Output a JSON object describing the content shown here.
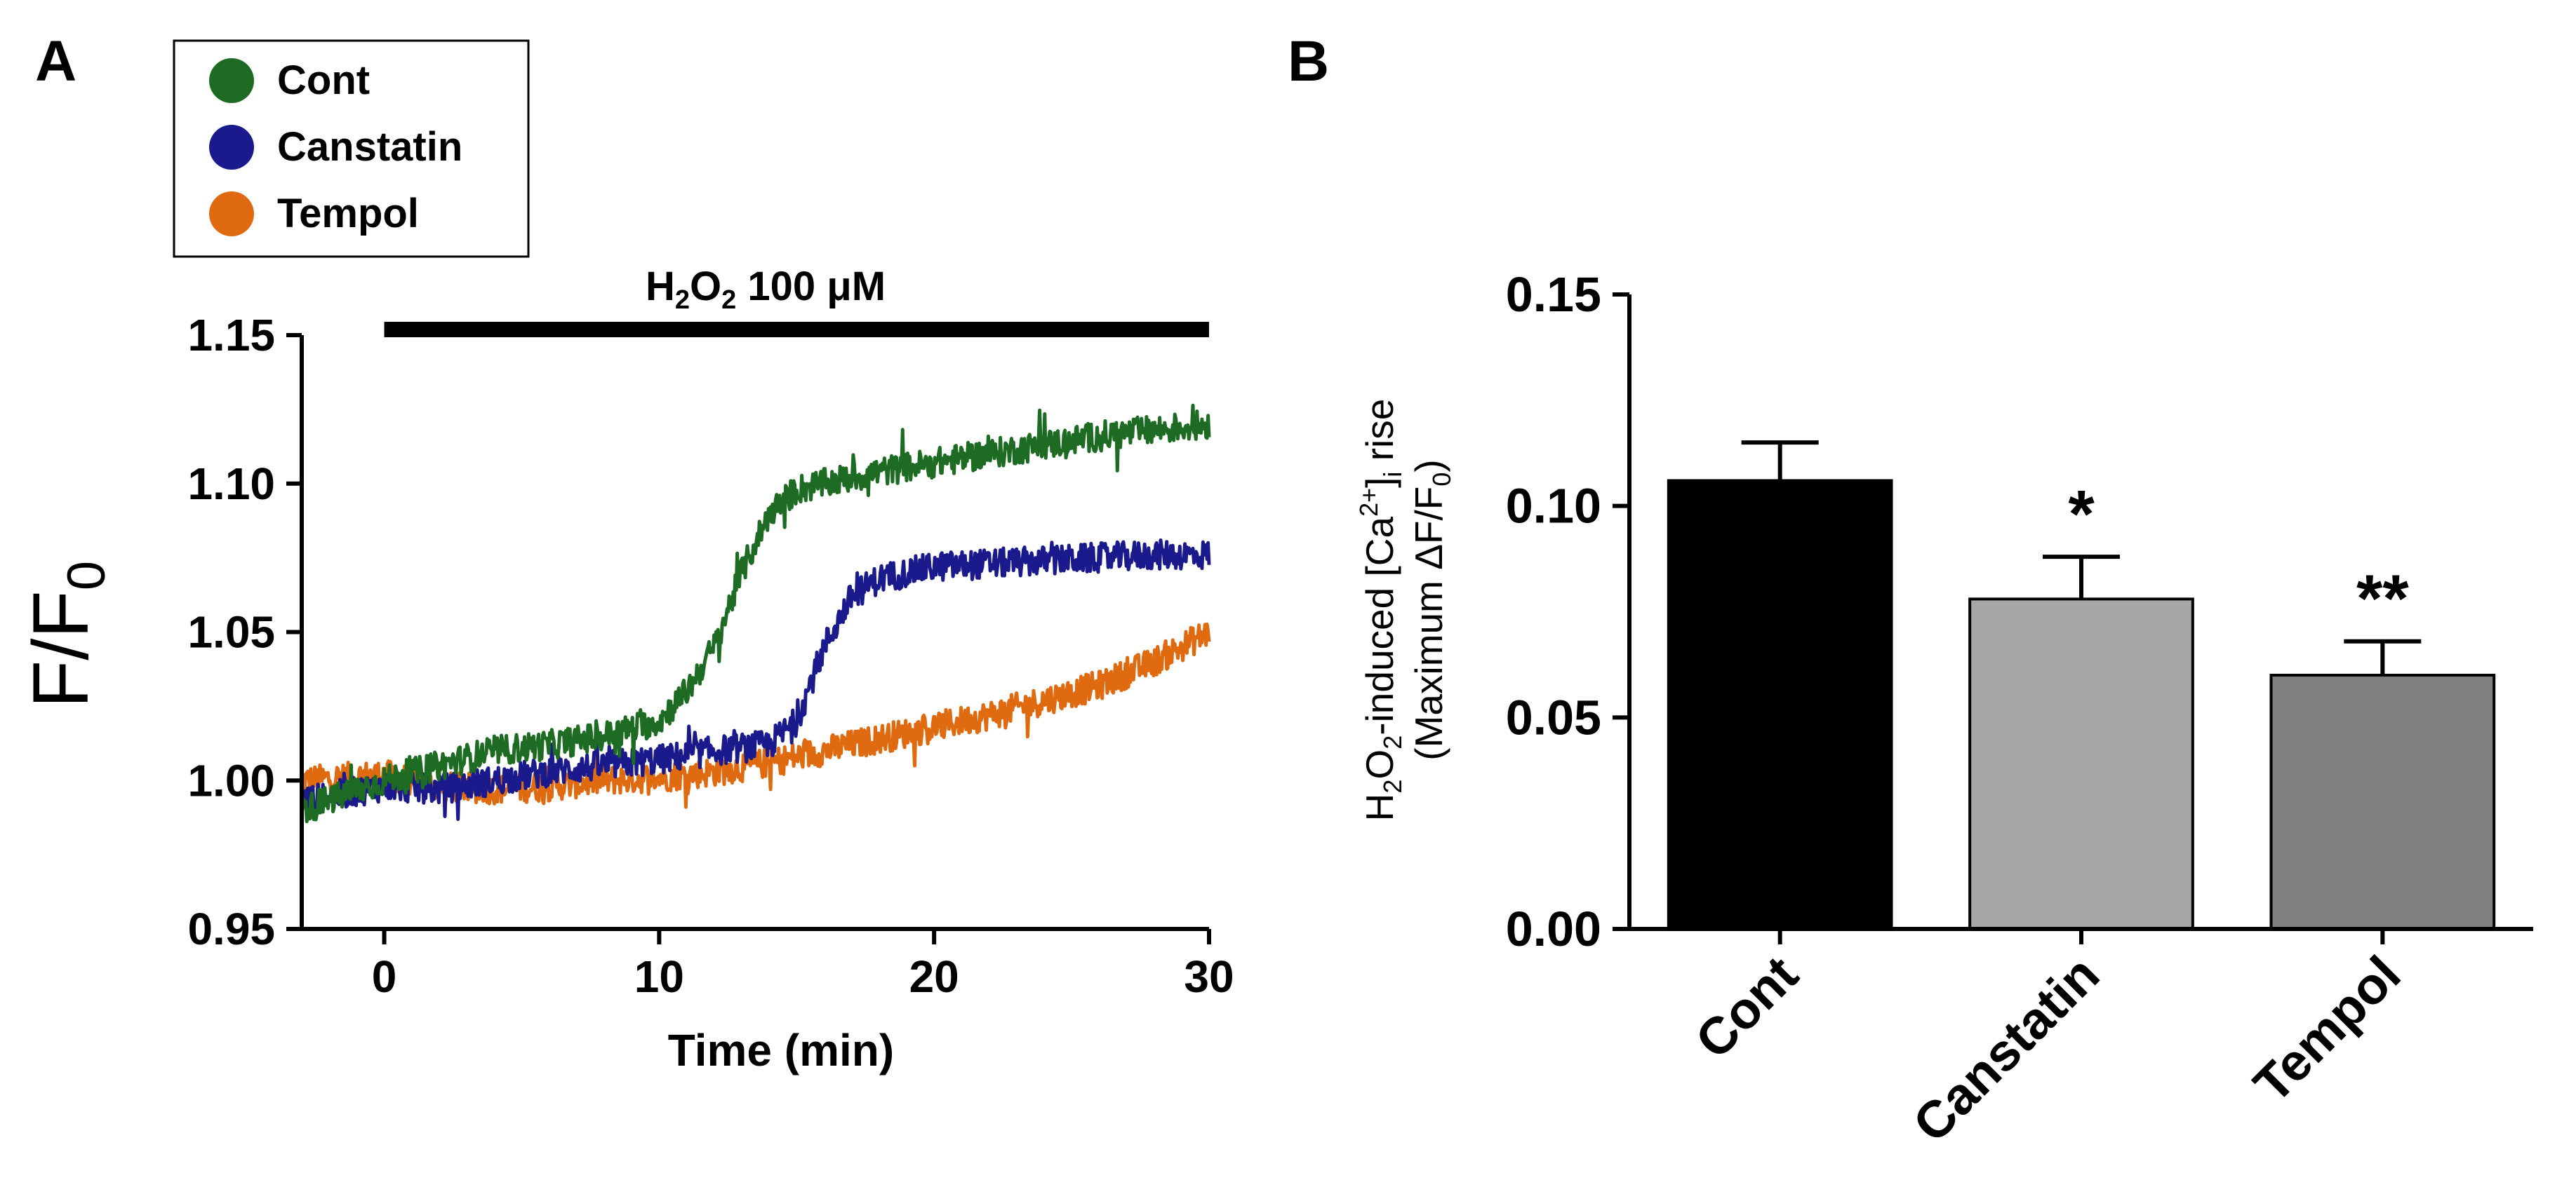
{
  "panels": {
    "a_label": "A",
    "b_label": "B"
  },
  "chart_data": [
    {
      "type": "line",
      "panel": "A",
      "ylabel": "F/F",
      "ylabel_sub": "0",
      "xlabel": "Time (min)",
      "xlim": [
        -3,
        30
      ],
      "ylim": [
        0.95,
        1.15
      ],
      "xticks": [
        0,
        10,
        20,
        30
      ],
      "yticks": [
        0.95,
        1.0,
        1.05,
        1.1,
        1.15
      ],
      "ytick_labels": [
        "0.95",
        "1.00",
        "1.05",
        "1.10",
        "1.15"
      ],
      "grid": false,
      "legend_position": "top-left",
      "annotation": {
        "text_h": "H",
        "text_sub1": "2",
        "text_o": "O",
        "text_sub2": "2",
        "text_rest": " 100 μM",
        "x_start": 0,
        "x_end": 30
      },
      "series": [
        {
          "name": "Cont",
          "color": "#1e6b23",
          "x": [
            -3,
            0,
            2,
            4,
            6,
            8,
            10,
            11,
            12,
            13,
            14,
            15,
            16,
            18,
            20,
            22,
            24,
            26,
            28,
            30
          ],
          "y": [
            0.99,
            1.0,
            1.005,
            1.01,
            1.012,
            1.015,
            1.02,
            1.03,
            1.045,
            1.07,
            1.09,
            1.098,
            1.1,
            1.104,
            1.107,
            1.11,
            1.113,
            1.116,
            1.118,
            1.12
          ]
        },
        {
          "name": "Canstatin",
          "color": "#1a1a8c",
          "x": [
            -3,
            0,
            2,
            4,
            6,
            8,
            10,
            12,
            14,
            15,
            16,
            17,
            18,
            20,
            22,
            24,
            26,
            28,
            30
          ],
          "y": [
            0.993,
            0.998,
            0.997,
            1.0,
            1.003,
            1.005,
            1.007,
            1.01,
            1.012,
            1.02,
            1.045,
            1.062,
            1.068,
            1.072,
            1.073,
            1.074,
            1.075,
            1.076,
            1.076
          ]
        },
        {
          "name": "Tempol",
          "color": "#e06a10",
          "x": [
            -3,
            0,
            2,
            4,
            6,
            8,
            10,
            12,
            14,
            16,
            18,
            20,
            22,
            24,
            26,
            28,
            30
          ],
          "y": [
            1.0,
            1.002,
            0.998,
            0.997,
            0.998,
            1.0,
            1.001,
            1.003,
            1.006,
            1.01,
            1.014,
            1.018,
            1.022,
            1.027,
            1.032,
            1.04,
            1.05
          ]
        }
      ]
    },
    {
      "type": "bar",
      "panel": "B",
      "ylabel_line1_h": "H",
      "ylabel_line1_sub": "2",
      "ylabel_line1_o": "O",
      "ylabel_line1_sub2": "2",
      "ylabel_line1_rest": "-induced [Ca",
      "ylabel_line1_sup": "2+",
      "ylabel_line1_bracket": "]",
      "ylabel_line1_isub": "i",
      "ylabel_line1_end": " rise",
      "ylabel_line2_start": "(Maximum ΔF/F",
      "ylabel_line2_sub": "0",
      "ylabel_line2_end": ")",
      "categories": [
        "Cont",
        "Canstatin",
        "Tempol"
      ],
      "values": [
        0.106,
        0.078,
        0.06
      ],
      "errors": [
        0.009,
        0.01,
        0.008
      ],
      "colors": [
        "#000000",
        "#a6a6a6",
        "#7f7f7f"
      ],
      "significance": [
        "",
        "*",
        "**"
      ],
      "ylim": [
        0.0,
        0.15
      ],
      "yticks": [
        0.0,
        0.05,
        0.1,
        0.15
      ],
      "ytick_labels": [
        "0.00",
        "0.05",
        "0.10",
        "0.15"
      ],
      "grid": false
    }
  ]
}
